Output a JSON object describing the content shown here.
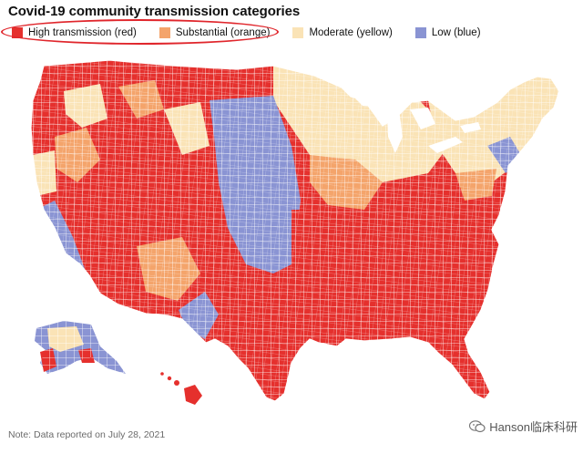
{
  "title": "Covid-19 community transmission categories",
  "legend": [
    {
      "label": "High transmission (red)",
      "color": "#e5302d"
    },
    {
      "label": "Substantial (orange)",
      "color": "#f4a46b"
    },
    {
      "label": "Moderate (yellow)",
      "color": "#fae3b6"
    },
    {
      "label": "Low (blue)",
      "color": "#8a94d3"
    }
  ],
  "map": {
    "subject": "United States counties by Covid-19 community transmission level",
    "dominant_category_by_region": {
      "south_and_southeast": "High transmission (red)",
      "west_and_mountain": "High transmission (red)",
      "great_plains": "Low (blue)",
      "upper_midwest_and_great_lakes": "Moderate (yellow)",
      "northeast": "Moderate (yellow)"
    },
    "outline_color": "#ffffff"
  },
  "note": "Note: Data reported on July 28, 2021",
  "watermark": "Hanson临床科研",
  "watermark_icon": "wechat-icon"
}
